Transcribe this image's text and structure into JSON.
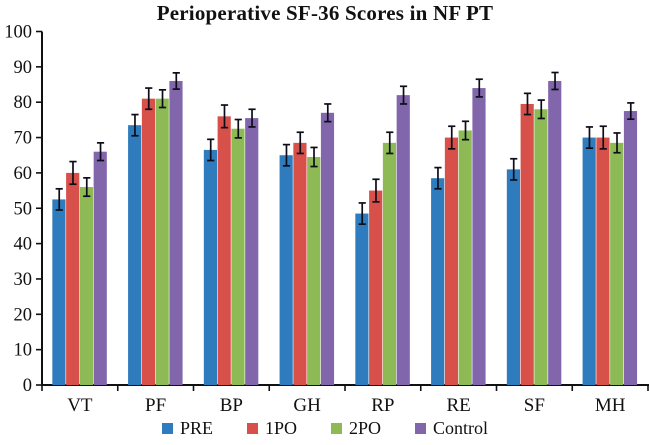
{
  "chart_data": {
    "type": "bar",
    "title": "Perioperative SF-36 Scores in NF PT",
    "categories": [
      "VT",
      "PF",
      "BP",
      "GH",
      "RP",
      "RE",
      "SF",
      "MH"
    ],
    "series": [
      {
        "name": "PRE",
        "color": "#2E7CBD",
        "values": [
          52.5,
          73.5,
          66.5,
          65.0,
          48.5,
          58.5,
          61.0,
          70.0
        ],
        "errors": [
          3.0,
          3.0,
          3.0,
          3.0,
          3.0,
          3.0,
          3.0,
          3.0
        ]
      },
      {
        "name": "1PO",
        "color": "#D7504A",
        "values": [
          60.0,
          81.0,
          76.0,
          68.5,
          55.0,
          70.0,
          79.5,
          70.0
        ],
        "errors": [
          3.2,
          3.0,
          3.2,
          3.0,
          3.2,
          3.2,
          3.0,
          3.2
        ]
      },
      {
        "name": "2PO",
        "color": "#8DBA54",
        "values": [
          56.0,
          81.0,
          72.5,
          64.5,
          68.5,
          72.0,
          78.0,
          68.5
        ],
        "errors": [
          2.6,
          2.5,
          2.6,
          2.7,
          3.0,
          2.6,
          2.6,
          2.8
        ]
      },
      {
        "name": "Control",
        "color": "#8166AB",
        "values": [
          66.0,
          86.0,
          75.5,
          77.0,
          82.0,
          84.0,
          86.0,
          77.5
        ],
        "errors": [
          2.5,
          2.3,
          2.5,
          2.5,
          2.5,
          2.5,
          2.4,
          2.3
        ]
      }
    ],
    "ylim": [
      0,
      100
    ],
    "ytick_step": 10,
    "xlabel": "",
    "ylabel": "",
    "grid": false,
    "legend_position": "bottom",
    "error_bars": true,
    "axis_color": "#111111",
    "error_bar_color": "#0d0d1a"
  }
}
